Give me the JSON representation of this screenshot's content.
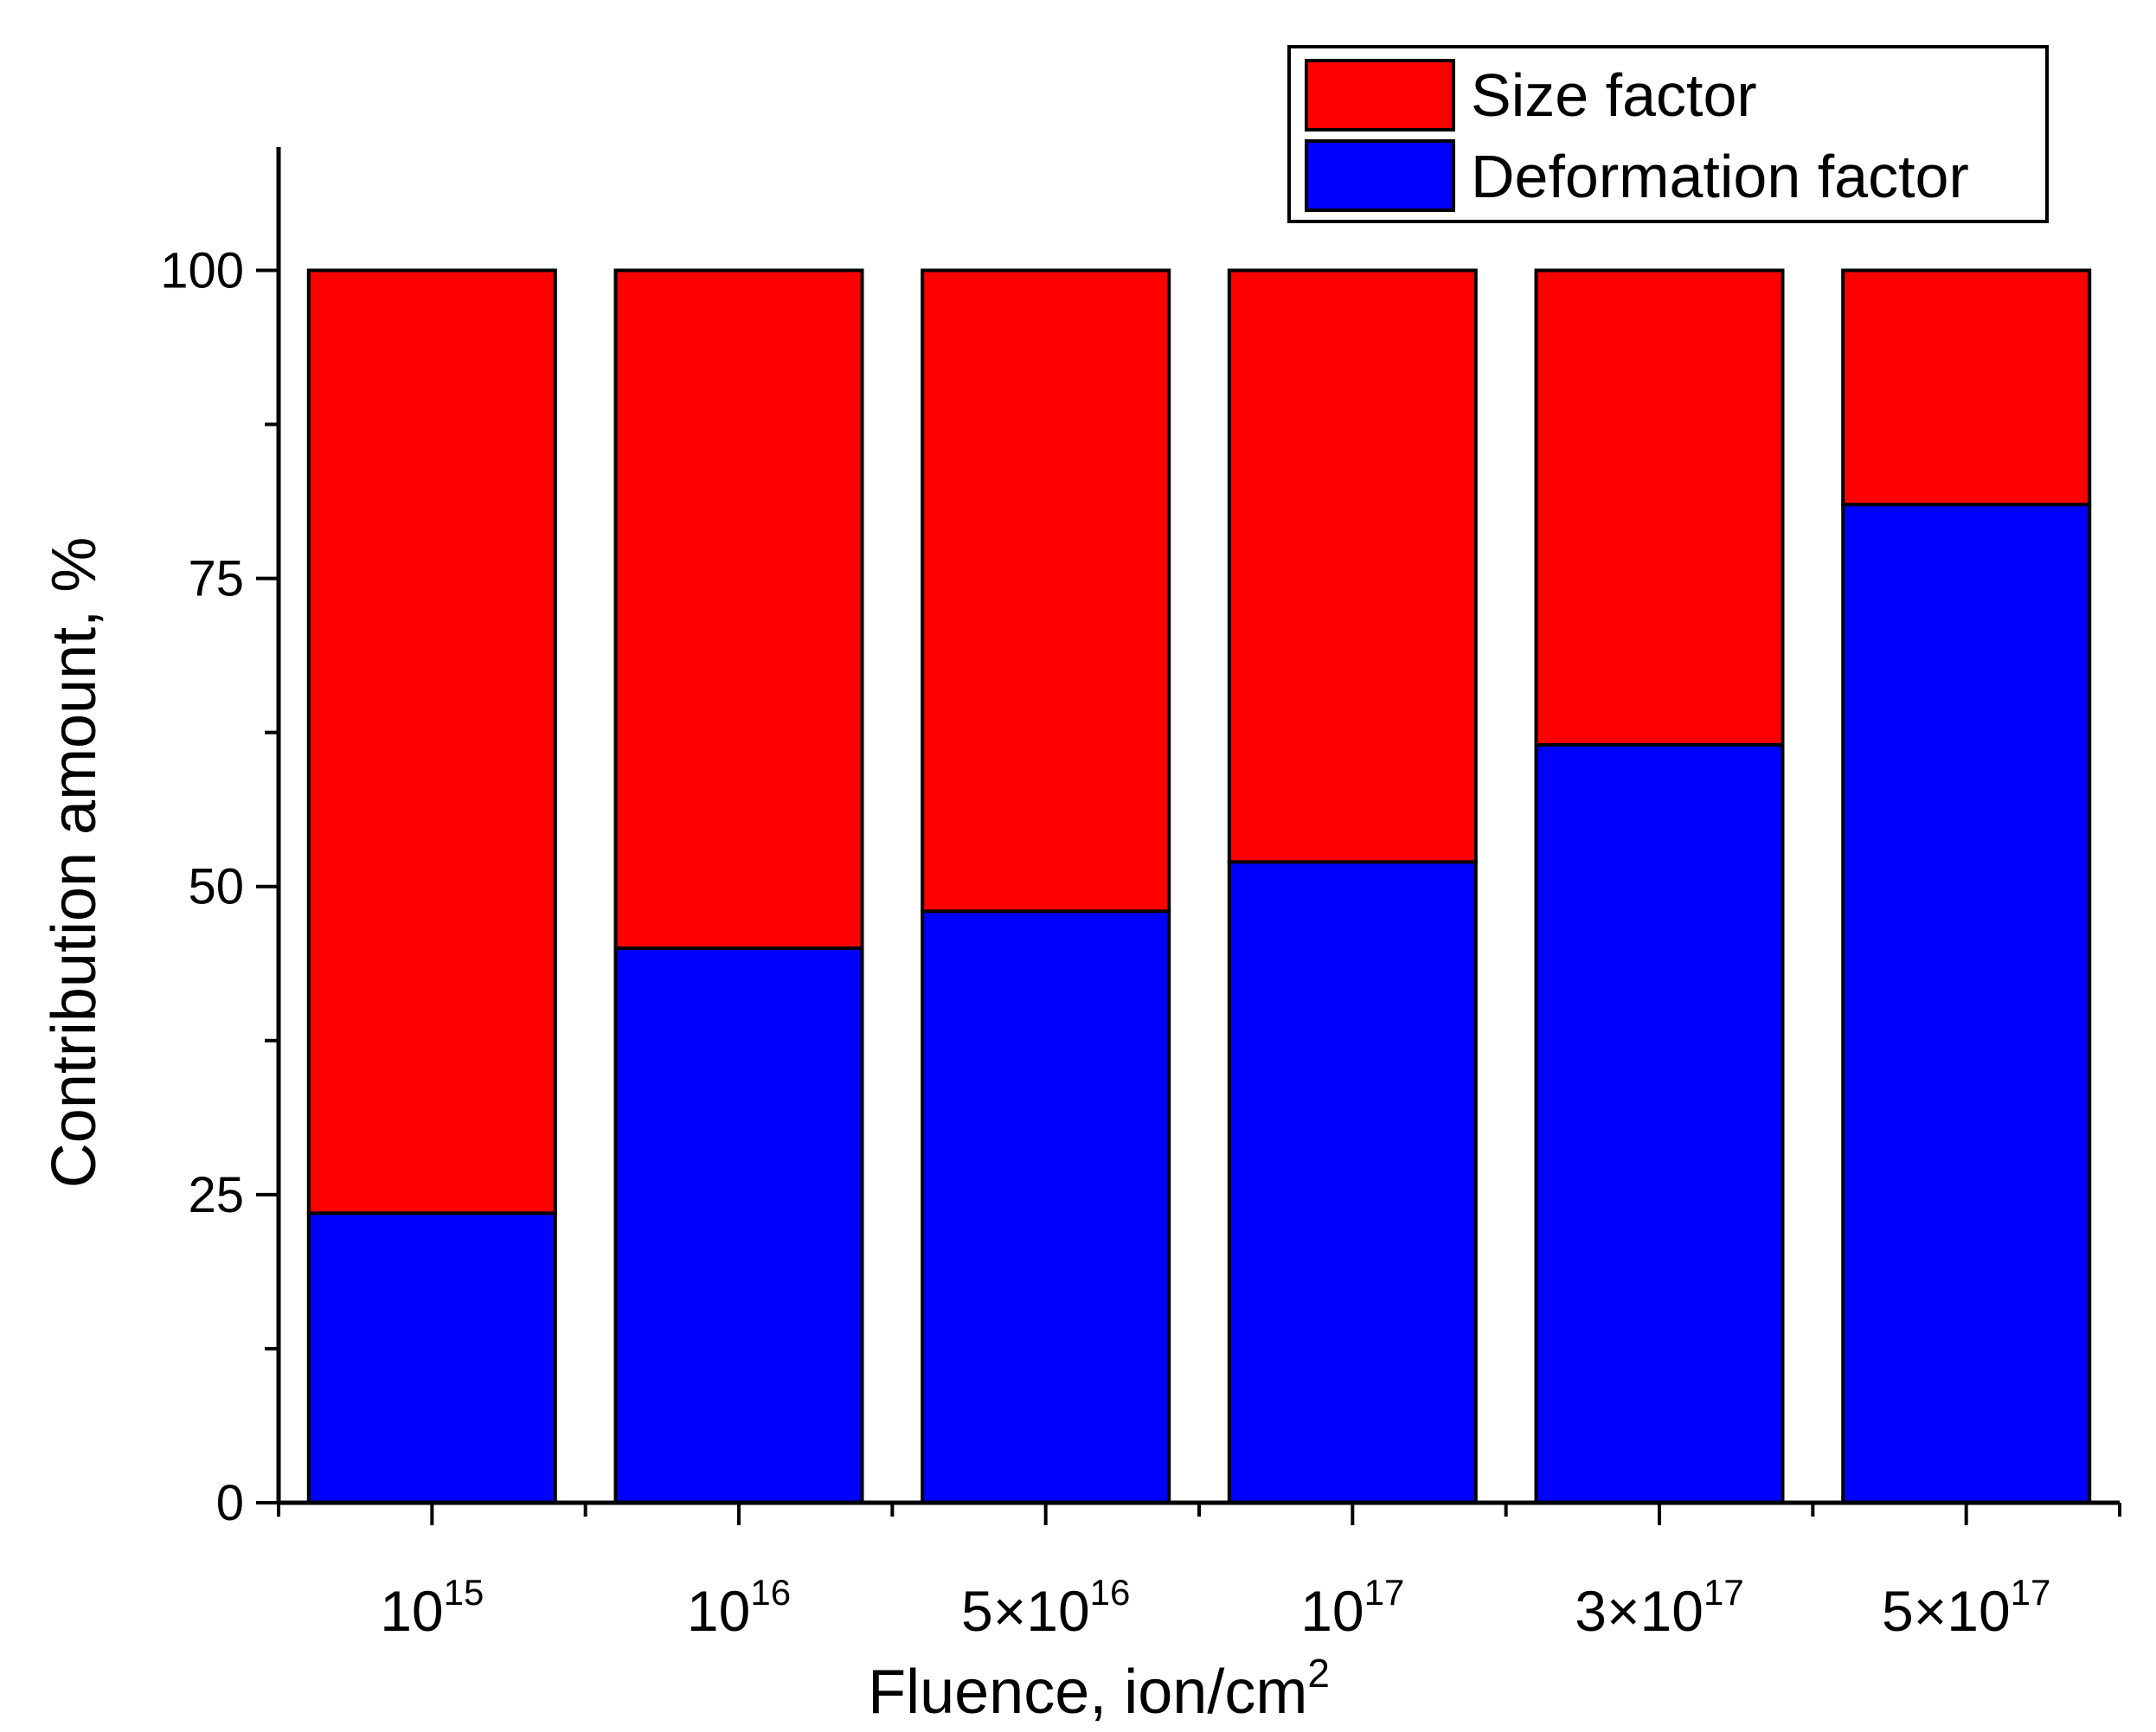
{
  "chart_data": {
    "type": "stacked-bar",
    "xlabel": "Fluence, ion/cm",
    "xlabel_sup": "2",
    "ylabel": "Contribution amount, %",
    "ylim": [
      0,
      110
    ],
    "yticks": [
      0,
      25,
      50,
      75,
      100
    ],
    "y_minor_step": 12.5,
    "categories": [
      {
        "base": "10",
        "exp": "15"
      },
      {
        "base": "10",
        "exp": "16"
      },
      {
        "base": "5×10",
        "exp": "16"
      },
      {
        "base": "10",
        "exp": "17"
      },
      {
        "base": "3×10",
        "exp": "17"
      },
      {
        "base": "5×10",
        "exp": "17"
      }
    ],
    "series": [
      {
        "name": "Deformation factor",
        "color": "#0000ff",
        "values": [
          23.5,
          45,
          48,
          52,
          61.5,
          81
        ]
      },
      {
        "name": "Size factor",
        "color": "#ff0000",
        "values": [
          76.5,
          55,
          52,
          48,
          38.5,
          19
        ]
      }
    ],
    "legend": {
      "position": "top-right",
      "entries": [
        "Size factor",
        "Deformation factor"
      ],
      "colors": [
        "#ff0000",
        "#0000ff"
      ]
    }
  }
}
